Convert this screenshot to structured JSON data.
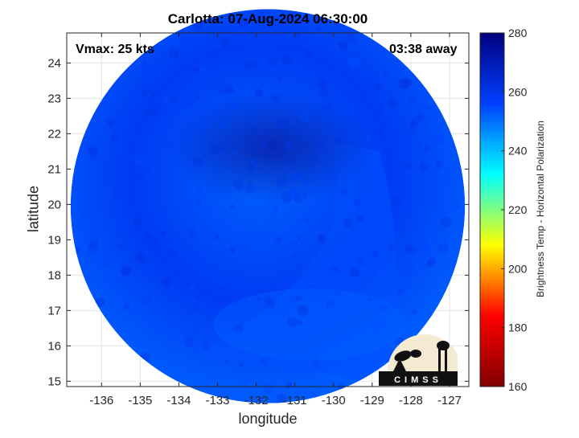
{
  "chart_data": {
    "type": "heatmap",
    "title": "Carlotta: 07-Aug-2024 06:30:00",
    "xlabel": "longitude",
    "ylabel": "latitude",
    "xlim": [
      -136.9,
      -126.5
    ],
    "ylim": [
      14.85,
      24.85
    ],
    "x_ticks": [
      -136,
      -135,
      -134,
      -133,
      -132,
      -131,
      -130,
      -129,
      -128,
      -127
    ],
    "y_ticks": [
      15,
      16,
      17,
      18,
      19,
      20,
      21,
      22,
      23,
      24
    ],
    "grid": true,
    "annotations": {
      "top_left": "Vmax: 25 kts",
      "top_right": "03:38 away"
    },
    "colorbar": {
      "label": "Brightness Temp - Horizontal Polarization",
      "range": [
        160,
        280
      ],
      "ticks": [
        160,
        180,
        200,
        220,
        240,
        260,
        280
      ],
      "colormap": "jet-reversed",
      "colors": [
        "#800000",
        "#ff0000",
        "#ffff00",
        "#00ffff",
        "#0040ff",
        "#000080"
      ]
    },
    "field_description_values_K": {
      "typical": 258,
      "cold_core_min": 250,
      "warm_band_max": 272
    },
    "swath": {
      "shape": "circle",
      "center": [
        -131.7,
        19.95
      ],
      "radius_deg": 5.1
    }
  },
  "logo": {
    "text": "CIMSS"
  }
}
